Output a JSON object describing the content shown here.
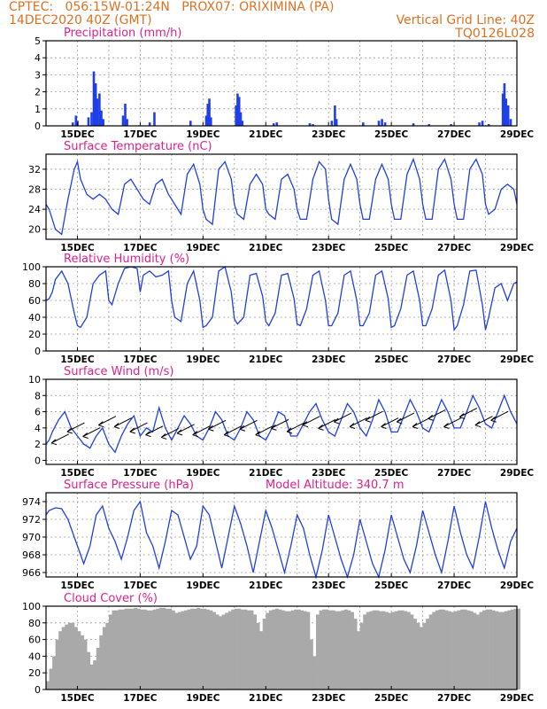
{
  "header": {
    "line1_left": "CPTEC:   056:15W-01:24N   PROX07: ORIXIMINA (PA)",
    "line2_left": "14DEC2020 40Z (GMT)",
    "line2_right": "Vertical Grid Line: 40Z",
    "line3_right": "TQ0126L028"
  },
  "colors": {
    "header": "#e07020",
    "title": "#e0208f",
    "line": "#2040e0",
    "bar": "#1f3fe8",
    "cloud": "#a9a9a9",
    "wind_arrow": "#000000"
  },
  "x_axis": {
    "tick_labels": [
      "15DEC",
      "17DEC",
      "19DEC",
      "21DEC",
      "23DEC",
      "25DEC",
      "27DEC",
      "29DEC"
    ],
    "tick_days": [
      1,
      3,
      5,
      7,
      9,
      11,
      13,
      15
    ],
    "range_days": [
      0,
      15
    ],
    "grid_every_days": 1
  },
  "chart_data": [
    {
      "id": "precip",
      "type": "bar",
      "title": "Precipitation (mm/h)",
      "ylim": [
        0,
        5
      ],
      "yticks": [
        0,
        1,
        2,
        3,
        4,
        5
      ],
      "grid": true,
      "points": [
        [
          0.85,
          0.2
        ],
        [
          0.95,
          0.6
        ],
        [
          1.0,
          0.3
        ],
        [
          1.35,
          0.5
        ],
        [
          1.45,
          0.8
        ],
        [
          1.52,
          3.2
        ],
        [
          1.58,
          2.5
        ],
        [
          1.63,
          1.6
        ],
        [
          1.7,
          1.9
        ],
        [
          1.76,
          0.9
        ],
        [
          1.82,
          0.4
        ],
        [
          2.45,
          0.6
        ],
        [
          2.52,
          1.3
        ],
        [
          2.58,
          0.4
        ],
        [
          3.3,
          0.2
        ],
        [
          3.45,
          0.8
        ],
        [
          4.6,
          0.3
        ],
        [
          5.1,
          0.6
        ],
        [
          5.15,
          1.3
        ],
        [
          5.2,
          1.6
        ],
        [
          5.25,
          0.5
        ],
        [
          6.05,
          1.2
        ],
        [
          6.1,
          1.9
        ],
        [
          6.15,
          1.7
        ],
        [
          6.2,
          0.8
        ],
        [
          6.25,
          0.3
        ],
        [
          7.25,
          0.15
        ],
        [
          7.35,
          0.2
        ],
        [
          8.4,
          0.15
        ],
        [
          8.5,
          0.1
        ],
        [
          9.1,
          0.3
        ],
        [
          9.2,
          1.2
        ],
        [
          9.25,
          0.4
        ],
        [
          10.1,
          0.2
        ],
        [
          10.6,
          0.3
        ],
        [
          10.7,
          0.4
        ],
        [
          10.8,
          0.2
        ],
        [
          11.7,
          0.15
        ],
        [
          12.2,
          0.1
        ],
        [
          12.9,
          0.1
        ],
        [
          13.8,
          0.2
        ],
        [
          13.9,
          0.3
        ],
        [
          14.1,
          0.1
        ],
        [
          14.55,
          1.9
        ],
        [
          14.6,
          2.5
        ],
        [
          14.65,
          1.6
        ],
        [
          14.72,
          1.2
        ],
        [
          14.8,
          0.4
        ]
      ]
    },
    {
      "id": "temp",
      "type": "line",
      "title": "Surface Temperature (nC)",
      "ylim": [
        18,
        35
      ],
      "yticks": [
        20,
        24,
        28,
        32
      ],
      "grid": true,
      "x": [
        0,
        0.1,
        0.2,
        0.3,
        0.5,
        0.7,
        0.9,
        1.0,
        1.1,
        1.3,
        1.5,
        1.7,
        1.9,
        2.0,
        2.1,
        2.3,
        2.5,
        2.7,
        2.9,
        3.0,
        3.1,
        3.3,
        3.5,
        3.7,
        3.9,
        4.0,
        4.1,
        4.3,
        4.5,
        4.7,
        4.9,
        5.0,
        5.1,
        5.3,
        5.5,
        5.7,
        5.9,
        6.0,
        6.1,
        6.3,
        6.5,
        6.7,
        6.9,
        7.0,
        7.1,
        7.3,
        7.5,
        7.7,
        7.9,
        8.0,
        8.1,
        8.3,
        8.5,
        8.7,
        8.9,
        9.0,
        9.1,
        9.3,
        9.5,
        9.7,
        9.9,
        10.0,
        10.1,
        10.3,
        10.5,
        10.7,
        10.9,
        11.0,
        11.1,
        11.3,
        11.5,
        11.7,
        11.9,
        12.0,
        12.1,
        12.3,
        12.5,
        12.7,
        12.9,
        13.0,
        13.1,
        13.3,
        13.5,
        13.7,
        13.9,
        14.0,
        14.1,
        14.3,
        14.5,
        14.7,
        14.9,
        15.0
      ],
      "values": [
        25,
        24,
        22,
        20,
        19,
        26,
        32,
        33.5,
        30,
        27,
        26,
        27,
        26,
        25,
        24,
        23,
        29,
        30,
        28,
        27,
        26,
        25,
        29,
        30,
        27,
        26,
        25,
        23,
        31,
        33,
        29,
        24,
        22,
        21,
        32,
        33.5,
        30,
        25,
        23,
        22,
        29,
        31,
        29,
        24,
        23,
        22,
        30,
        31,
        28,
        24,
        22,
        22,
        30,
        33.5,
        32,
        26,
        22,
        21,
        30,
        33,
        30,
        25,
        22,
        22,
        30,
        33,
        30,
        25,
        22,
        22,
        31,
        34,
        30,
        25,
        22,
        22,
        32,
        34,
        30,
        25,
        22,
        22,
        32,
        34,
        31,
        25,
        23,
        24,
        28,
        29,
        28,
        25
      ]
    },
    {
      "id": "rh",
      "type": "line",
      "title": "Relative Humidity (%)",
      "ylim": [
        0,
        100
      ],
      "yticks": [
        0,
        20,
        40,
        60,
        80,
        100
      ],
      "grid": true,
      "x": [
        0,
        0.1,
        0.2,
        0.3,
        0.5,
        0.7,
        0.9,
        1.0,
        1.1,
        1.3,
        1.5,
        1.7,
        1.9,
        2.0,
        2.1,
        2.3,
        2.5,
        2.7,
        2.9,
        3.0,
        3.1,
        3.3,
        3.5,
        3.7,
        3.9,
        4.0,
        4.1,
        4.3,
        4.5,
        4.7,
        4.9,
        5.0,
        5.1,
        5.3,
        5.5,
        5.7,
        5.9,
        6.0,
        6.1,
        6.3,
        6.5,
        6.7,
        6.9,
        7.0,
        7.1,
        7.3,
        7.5,
        7.7,
        7.9,
        8.0,
        8.1,
        8.3,
        8.5,
        8.7,
        8.9,
        9.0,
        9.1,
        9.3,
        9.5,
        9.7,
        9.9,
        10.0,
        10.1,
        10.3,
        10.5,
        10.7,
        10.9,
        11.0,
        11.1,
        11.3,
        11.5,
        11.7,
        11.9,
        12.0,
        12.1,
        12.3,
        12.5,
        12.7,
        12.9,
        13.0,
        13.1,
        13.3,
        13.5,
        13.7,
        13.9,
        14.0,
        14.1,
        14.3,
        14.5,
        14.7,
        14.9,
        15.0
      ],
      "values": [
        60,
        62,
        70,
        85,
        95,
        80,
        45,
        30,
        28,
        40,
        80,
        90,
        95,
        60,
        55,
        80,
        98,
        100,
        98,
        70,
        90,
        95,
        88,
        90,
        95,
        60,
        40,
        35,
        80,
        95,
        60,
        28,
        30,
        40,
        95,
        100,
        70,
        38,
        32,
        40,
        90,
        92,
        65,
        35,
        30,
        45,
        90,
        92,
        62,
        32,
        30,
        50,
        90,
        95,
        60,
        30,
        30,
        45,
        90,
        95,
        60,
        30,
        30,
        45,
        90,
        95,
        62,
        28,
        30,
        50,
        90,
        95,
        60,
        30,
        30,
        50,
        90,
        96,
        60,
        25,
        30,
        55,
        95,
        96,
        55,
        25,
        40,
        75,
        80,
        60,
        80,
        82
      ]
    },
    {
      "id": "wind",
      "type": "line",
      "title": "Surface Wind (m/s)",
      "ylim": [
        -0.5,
        10
      ],
      "yticks": [
        0,
        2,
        4,
        6,
        8,
        10
      ],
      "grid": true,
      "x": [
        0,
        0.1,
        0.2,
        0.4,
        0.6,
        0.8,
        1.0,
        1.2,
        1.4,
        1.6,
        1.8,
        2.0,
        2.2,
        2.4,
        2.6,
        2.8,
        3.0,
        3.2,
        3.4,
        3.6,
        3.8,
        4.0,
        4.2,
        4.4,
        4.6,
        4.8,
        5.0,
        5.2,
        5.4,
        5.6,
        5.8,
        6.0,
        6.2,
        6.4,
        6.6,
        6.8,
        7.0,
        7.2,
        7.4,
        7.6,
        7.8,
        8.0,
        8.2,
        8.4,
        8.6,
        8.8,
        9.0,
        9.2,
        9.4,
        9.6,
        9.8,
        10.0,
        10.2,
        10.4,
        10.6,
        10.8,
        11.0,
        11.2,
        11.4,
        11.6,
        11.8,
        12.0,
        12.2,
        12.4,
        12.6,
        12.8,
        13.0,
        13.2,
        13.4,
        13.6,
        13.8,
        14.0,
        14.2,
        14.4,
        14.6,
        14.8,
        15.0
      ],
      "values": [
        2,
        2.5,
        3.5,
        5,
        6,
        4,
        3,
        2,
        1.5,
        3,
        4,
        2,
        1,
        3,
        4.5,
        5.5,
        3,
        4,
        3.5,
        6.5,
        4,
        2.5,
        4,
        5.5,
        4.5,
        3,
        2.5,
        4,
        6,
        5,
        3,
        2.5,
        4,
        6,
        5,
        3,
        2.5,
        4,
        6,
        5.5,
        3,
        3,
        4.5,
        6,
        7,
        5,
        3.5,
        3,
        5,
        7,
        6,
        4,
        3,
        5,
        7.5,
        6,
        3.5,
        3.5,
        5.5,
        7.5,
        6,
        4,
        3.5,
        5.5,
        7.5,
        6,
        4,
        4,
        6,
        8,
        6.5,
        4.5,
        4,
        6,
        8,
        6,
        4.5
      ],
      "arrows": [
        [
          0.5,
          2.8
        ],
        [
          1.0,
          4.2
        ],
        [
          1.5,
          3.6
        ],
        [
          2.0,
          5.0
        ],
        [
          2.5,
          4.8
        ],
        [
          3.0,
          4.2
        ],
        [
          3.5,
          3.8
        ],
        [
          4.0,
          3.5
        ],
        [
          4.5,
          4.0
        ],
        [
          5.0,
          3.8
        ],
        [
          5.5,
          4.5
        ],
        [
          6.0,
          3.8
        ],
        [
          6.5,
          4.5
        ],
        [
          7.0,
          3.8
        ],
        [
          7.5,
          4.6
        ],
        [
          8.0,
          4.2
        ],
        [
          8.5,
          5.0
        ],
        [
          9.0,
          4.6
        ],
        [
          9.5,
          5.4
        ],
        [
          10.0,
          4.8
        ],
        [
          10.5,
          5.6
        ],
        [
          11.0,
          4.8
        ],
        [
          11.5,
          5.4
        ],
        [
          12.0,
          4.8
        ],
        [
          12.5,
          5.8
        ],
        [
          13.0,
          4.8
        ],
        [
          13.5,
          6.0
        ],
        [
          14.0,
          5.0
        ],
        [
          14.5,
          5.6
        ]
      ]
    },
    {
      "id": "pres",
      "type": "line",
      "title": "Surface Pressure (hPa)",
      "subtitle": "Model Altitude: 340.7 m",
      "ylim": [
        965.5,
        975
      ],
      "yticks": [
        966,
        968,
        970,
        972,
        974
      ],
      "grid": true,
      "x": [
        0,
        0.1,
        0.3,
        0.5,
        0.7,
        0.9,
        1.0,
        1.2,
        1.4,
        1.6,
        1.8,
        2.0,
        2.2,
        2.4,
        2.6,
        2.8,
        3.0,
        3.2,
        3.4,
        3.6,
        3.8,
        4.0,
        4.2,
        4.4,
        4.6,
        4.8,
        5.0,
        5.2,
        5.4,
        5.6,
        5.8,
        6.0,
        6.2,
        6.4,
        6.6,
        6.8,
        7.0,
        7.2,
        7.4,
        7.6,
        7.8,
        8.0,
        8.2,
        8.4,
        8.6,
        8.8,
        9.0,
        9.2,
        9.4,
        9.6,
        9.8,
        10.0,
        10.2,
        10.4,
        10.6,
        10.8,
        11.0,
        11.2,
        11.4,
        11.6,
        11.8,
        12.0,
        12.2,
        12.4,
        12.6,
        12.8,
        13.0,
        13.2,
        13.4,
        13.6,
        13.8,
        14.0,
        14.2,
        14.4,
        14.6,
        14.8,
        15.0
      ],
      "values": [
        972.5,
        973,
        973.3,
        973.2,
        972,
        970,
        969,
        967,
        969,
        972.5,
        973.5,
        971,
        969.5,
        967.5,
        970,
        973,
        974,
        970.5,
        969,
        966.5,
        969.5,
        973,
        972.5,
        970,
        967.5,
        969,
        973.5,
        972.5,
        969.5,
        966.5,
        970,
        973.5,
        971.5,
        969,
        966,
        969.5,
        973,
        971,
        968.5,
        966,
        969,
        972.5,
        971,
        968,
        965.5,
        968.5,
        972.5,
        970,
        967.5,
        965.5,
        968,
        972,
        969.5,
        967,
        965.5,
        968.5,
        972.5,
        970,
        967.5,
        966,
        969,
        973,
        970.5,
        968,
        966,
        969.5,
        973.5,
        970.5,
        968,
        966.5,
        970,
        974,
        971,
        968.5,
        966.5,
        969.5,
        971
      ]
    },
    {
      "id": "cloud",
      "type": "bar",
      "title": "Cloud Cover (%)",
      "ylim": [
        0,
        100
      ],
      "yticks": [
        0,
        20,
        40,
        60,
        80,
        100
      ],
      "grid": true,
      "x_range": [
        0,
        15
      ],
      "step": 0.1,
      "values": [
        10,
        25,
        40,
        60,
        70,
        75,
        78,
        80,
        80,
        75,
        70,
        65,
        60,
        45,
        30,
        35,
        50,
        65,
        75,
        80,
        90,
        95,
        95,
        96,
        96,
        97,
        97,
        97,
        98,
        97,
        96,
        96,
        95,
        95,
        96,
        97,
        98,
        98,
        97,
        97,
        95,
        92,
        93,
        94,
        95,
        96,
        97,
        97,
        98,
        97,
        97,
        96,
        95,
        93,
        90,
        88,
        90,
        92,
        94,
        96,
        97,
        97,
        96,
        96,
        95,
        95,
        90,
        80,
        70,
        85,
        92,
        95,
        96,
        97,
        96,
        95,
        94,
        94,
        95,
        96,
        96,
        95,
        94,
        93,
        60,
        40,
        90,
        95,
        96,
        96,
        95,
        95,
        94,
        94,
        95,
        96,
        95,
        93,
        85,
        70,
        80,
        90,
        93,
        94,
        95,
        95,
        94,
        94,
        93,
        92,
        93,
        94,
        95,
        95,
        94,
        93,
        90,
        85,
        80,
        75,
        80,
        85,
        90,
        93,
        95,
        96,
        96,
        95,
        94,
        93,
        94,
        95,
        96,
        96,
        95,
        94,
        92,
        90,
        93,
        95,
        96,
        96,
        95,
        94,
        93,
        93,
        94,
        95,
        96,
        97,
        97
      ]
    }
  ]
}
